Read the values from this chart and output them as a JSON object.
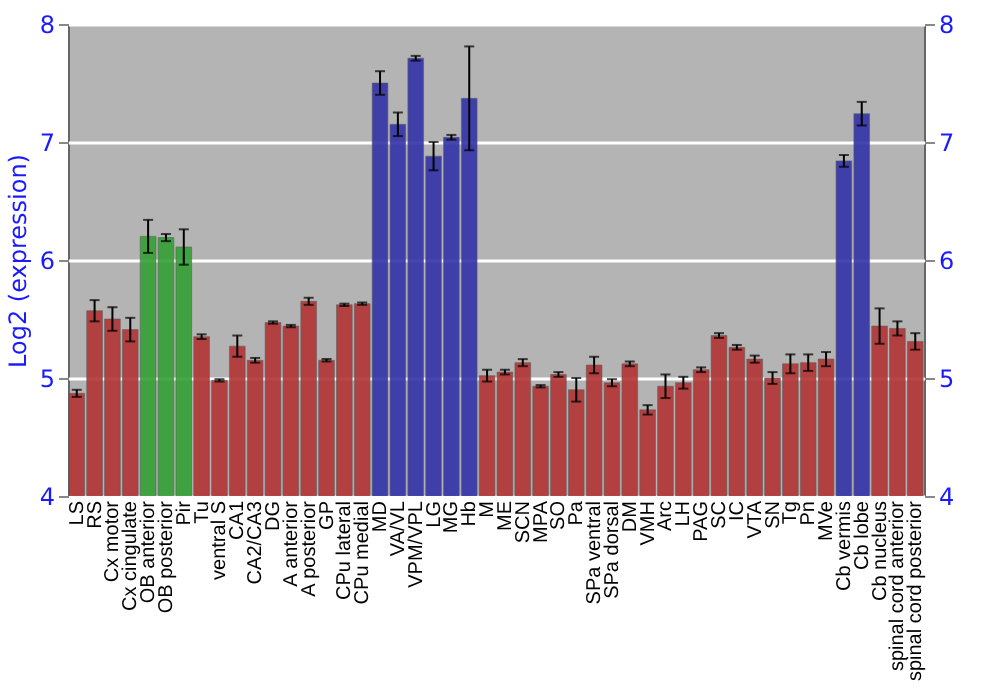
{
  "chart_data": {
    "type": "bar",
    "ylabel": "Log2 (expression)",
    "categories": [
      "LS",
      "RS",
      "Cx motor",
      "Cx cingulate",
      "OB anterior",
      "OB posterior",
      "Pir",
      "Tu",
      "ventral S",
      "CA1",
      "CA2/CA3",
      "DG",
      "A anterior",
      "A posterior",
      "GP",
      "CPu lateral",
      "CPu medial",
      "MD",
      "VA/VL",
      "VPM/VPL",
      "LG",
      "MG",
      "Hb",
      "M",
      "ME",
      "SCN",
      "MPA",
      "SO",
      "Pa",
      "SPa ventral",
      "SPa dorsal",
      "DM",
      "VMH",
      "Arc",
      "LH",
      "PAG",
      "SC",
      "IC",
      "VTA",
      "SN",
      "Tg",
      "Pn",
      "MVe",
      "Cb vermis",
      "Cb lobe",
      "Cb nucleus",
      "spinal cord anterior",
      "spinal cord posterior"
    ],
    "values": [
      4.87,
      5.57,
      5.5,
      5.41,
      6.2,
      6.19,
      6.11,
      5.35,
      4.98,
      5.27,
      5.15,
      5.47,
      5.44,
      5.65,
      5.15,
      5.62,
      5.63,
      7.5,
      7.15,
      7.71,
      6.88,
      7.04,
      7.37,
      5.02,
      5.05,
      5.13,
      4.93,
      5.03,
      4.9,
      5.11,
      4.96,
      5.12,
      4.73,
      4.93,
      4.96,
      5.07,
      5.36,
      5.26,
      5.16,
      5.0,
      5.12,
      5.13,
      5.16,
      6.84,
      7.24,
      5.44,
      5.42,
      5.31
    ],
    "errors": [
      0.03,
      0.09,
      0.1,
      0.1,
      0.14,
      0.03,
      0.15,
      0.02,
      0.01,
      0.09,
      0.02,
      0.01,
      0.01,
      0.03,
      0.01,
      0.01,
      0.01,
      0.1,
      0.1,
      0.02,
      0.12,
      0.02,
      0.44,
      0.05,
      0.02,
      0.03,
      0.01,
      0.02,
      0.1,
      0.07,
      0.03,
      0.02,
      0.04,
      0.1,
      0.05,
      0.02,
      0.02,
      0.02,
      0.03,
      0.05,
      0.08,
      0.07,
      0.06,
      0.05,
      0.1,
      0.15,
      0.06,
      0.07
    ],
    "colors": [
      "#b23434",
      "#b23434",
      "#b23434",
      "#b23434",
      "#33a033",
      "#33a033",
      "#33a033",
      "#b23434",
      "#b23434",
      "#b23434",
      "#b23434",
      "#b23434",
      "#b23434",
      "#b23434",
      "#b23434",
      "#b23434",
      "#b23434",
      "#3333aa",
      "#3333aa",
      "#3333aa",
      "#3333aa",
      "#3333aa",
      "#3333aa",
      "#b23434",
      "#b23434",
      "#b23434",
      "#b23434",
      "#b23434",
      "#b23434",
      "#b23434",
      "#b23434",
      "#b23434",
      "#b23434",
      "#b23434",
      "#b23434",
      "#b23434",
      "#b23434",
      "#b23434",
      "#b23434",
      "#b23434",
      "#b23434",
      "#b23434",
      "#b23434",
      "#3333aa",
      "#3333aa",
      "#b23434",
      "#b23434",
      "#b23434"
    ],
    "ylim": [
      4,
      8
    ],
    "yticks": [
      4,
      5,
      6,
      7,
      8
    ],
    "y2lim": [
      4,
      8
    ],
    "y2ticks": [
      4,
      5,
      6,
      7,
      8
    ],
    "grid": "y"
  }
}
